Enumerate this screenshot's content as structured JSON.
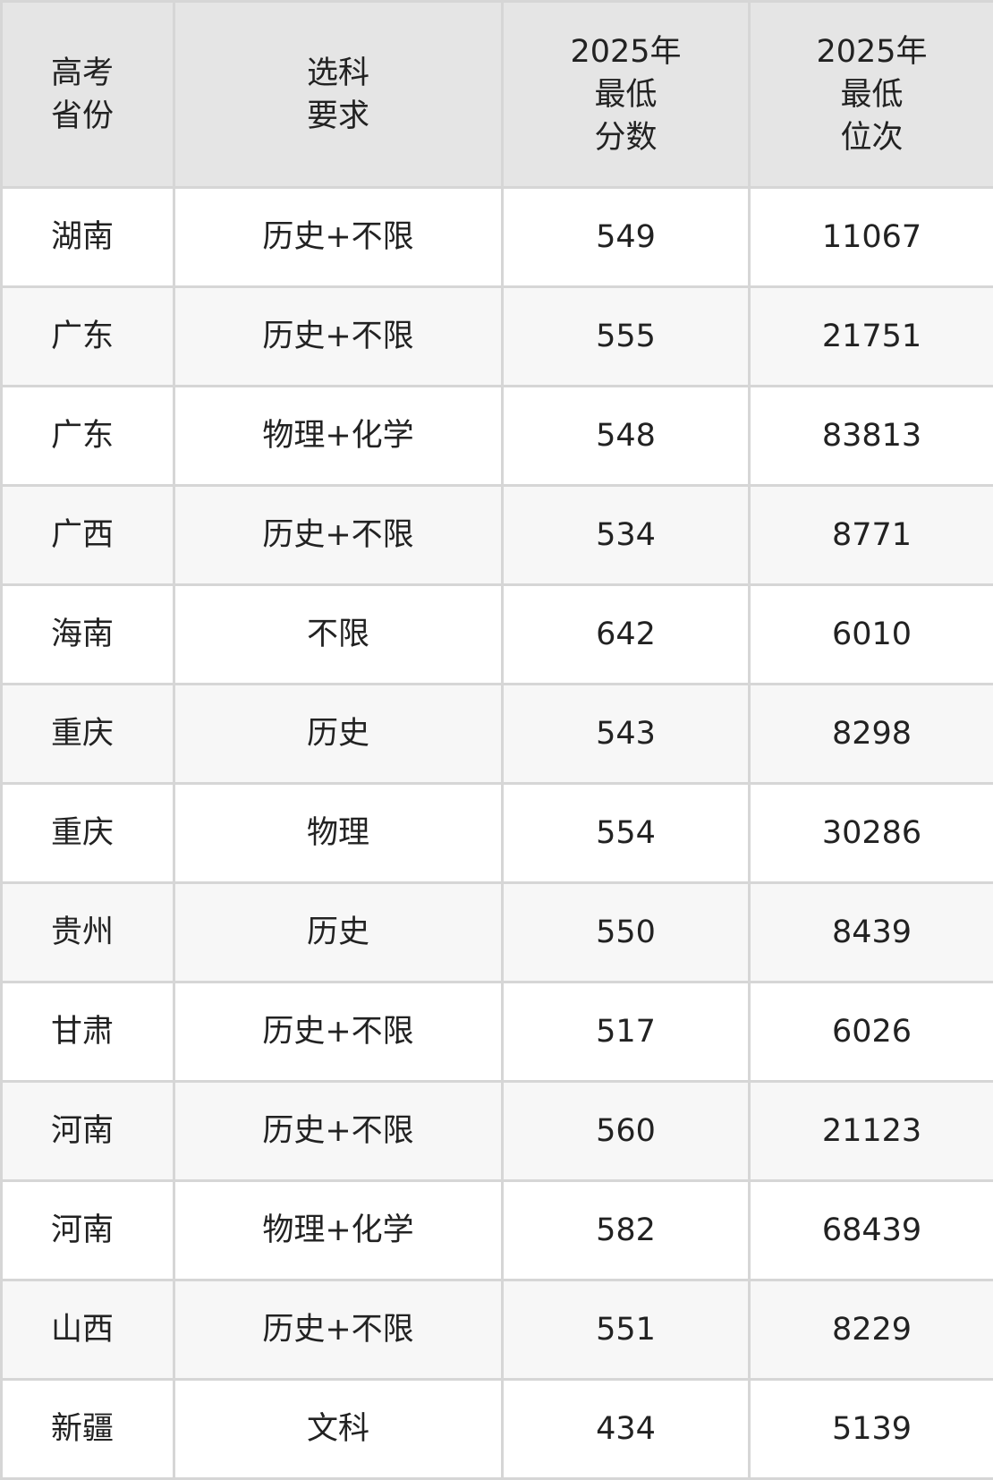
{
  "headers": [
    "高考\n省份",
    "选科\n要求",
    "2025年\n最低\n分数",
    "2025年\n最低\n位次"
  ],
  "rows": [
    [
      "湖南",
      "历史+不限",
      "549",
      "11067"
    ],
    [
      "广东",
      "历史+不限",
      "555",
      "21751"
    ],
    [
      "广东",
      "物理+化学",
      "548",
      "83813"
    ],
    [
      "广西",
      "历史+不限",
      "534",
      "8771"
    ],
    [
      "海南",
      "不限",
      "642",
      "6010"
    ],
    [
      "重庆",
      "历史",
      "543",
      "8298"
    ],
    [
      "重庆",
      "物理",
      "554",
      "30286"
    ],
    [
      "贵州",
      "历史",
      "550",
      "8439"
    ],
    [
      "甘肃",
      "历史+不限",
      "517",
      "6026"
    ],
    [
      "河南",
      "历史+不限",
      "560",
      "21123"
    ],
    [
      "河南",
      "物理+化学",
      "582",
      "68439"
    ],
    [
      "山西",
      "历史+不限",
      "551",
      "8229"
    ],
    [
      "新疆",
      "文科",
      "434",
      "5139"
    ]
  ]
}
